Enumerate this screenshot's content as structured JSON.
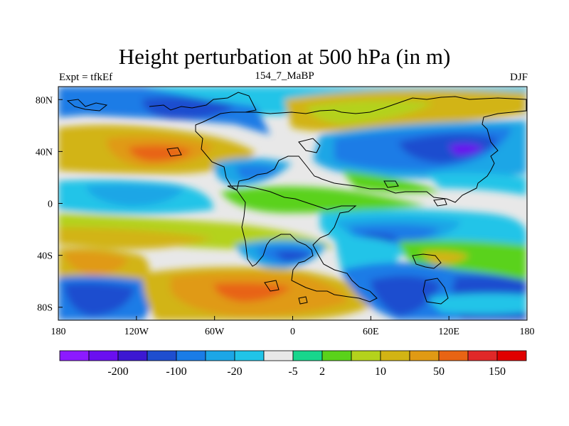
{
  "title": "Height perturbation at 500 hPa (in m)",
  "left_string": "Expt = tfkEf",
  "center_string": "154_7_MaBP",
  "right_string": "DJF",
  "chart_data": {
    "type": "heatmap",
    "title": "Height perturbation at 500 hPa (in m)",
    "xlabel": "",
    "ylabel": "",
    "xlim": [
      -180,
      180
    ],
    "ylim": [
      -90,
      90
    ],
    "x_ticks": [
      {
        "value": -180,
        "label": "180"
      },
      {
        "value": -120,
        "label": "120W"
      },
      {
        "value": -60,
        "label": "60W"
      },
      {
        "value": 0,
        "label": "0"
      },
      {
        "value": 60,
        "label": "60E"
      },
      {
        "value": 120,
        "label": "120E"
      },
      {
        "value": 180,
        "label": "180"
      }
    ],
    "y_ticks": [
      {
        "value": 80,
        "label": "80N"
      },
      {
        "value": 40,
        "label": "40N"
      },
      {
        "value": 0,
        "label": "0"
      },
      {
        "value": -40,
        "label": "40S"
      },
      {
        "value": -80,
        "label": "80S"
      }
    ],
    "colorbar": {
      "colors": [
        "#8c1aff",
        "#6a0ff0",
        "#3c18d2",
        "#1e4ecf",
        "#1a7ce6",
        "#1ca6e6",
        "#20c4e8",
        "#e8e8e8",
        "#18d68c",
        "#5ad21a",
        "#b4d21c",
        "#d2b414",
        "#e09a14",
        "#e86414",
        "#e02828",
        "#e00000"
      ],
      "labels": [
        {
          "after_index": 1,
          "text": "-200"
        },
        {
          "after_index": 3,
          "text": "-100"
        },
        {
          "after_index": 5,
          "text": "-20"
        },
        {
          "after_index": 7,
          "text": "-5"
        },
        {
          "after_index": 8,
          "text": "2"
        },
        {
          "after_index": 10,
          "text": "10"
        },
        {
          "after_index": 12,
          "text": "50"
        },
        {
          "after_index": 14,
          "text": "150"
        }
      ]
    },
    "field_regions": [
      {
        "lon": -110,
        "lat": 70,
        "rx": 70,
        "ry": 12,
        "level": 5
      },
      {
        "lon": -90,
        "lat": 72,
        "rx": 25,
        "ry": 8,
        "level": 4
      },
      {
        "lon": -80,
        "lat": 35,
        "rx": 60,
        "ry": 14,
        "level": 13
      },
      {
        "lon": -100,
        "lat": 33,
        "rx": 25,
        "ry": 8,
        "level": 14
      },
      {
        "lon": -120,
        "lat": 7,
        "rx": 40,
        "ry": 9,
        "level": 4
      },
      {
        "lon": -60,
        "lat": -18,
        "rx": 80,
        "ry": 12,
        "level": 13
      },
      {
        "lon": -150,
        "lat": -45,
        "rx": 40,
        "ry": 16,
        "level": 12
      },
      {
        "lon": -150,
        "lat": -70,
        "rx": 40,
        "ry": 12,
        "level": 4
      },
      {
        "lon": -60,
        "lat": -70,
        "rx": 55,
        "ry": 14,
        "level": 14
      },
      {
        "lon": 5,
        "lat": -40,
        "rx": 25,
        "ry": 10,
        "level": 5
      },
      {
        "lon": 95,
        "lat": 45,
        "rx": 70,
        "ry": 20,
        "level": 5
      },
      {
        "lon": 130,
        "lat": 42,
        "rx": 25,
        "ry": 8,
        "level": 2
      },
      {
        "lon": 45,
        "lat": 68,
        "rx": 55,
        "ry": 14,
        "level": 13
      },
      {
        "lon": 65,
        "lat": -25,
        "rx": 45,
        "ry": 10,
        "level": 5
      },
      {
        "lon": 125,
        "lat": -40,
        "rx": 35,
        "ry": 10,
        "level": 12
      },
      {
        "lon": 150,
        "lat": -70,
        "rx": 35,
        "ry": 12,
        "level": 4
      },
      {
        "lon": 155,
        "lat": -15,
        "rx": 35,
        "ry": 10,
        "level": 6
      }
    ]
  }
}
